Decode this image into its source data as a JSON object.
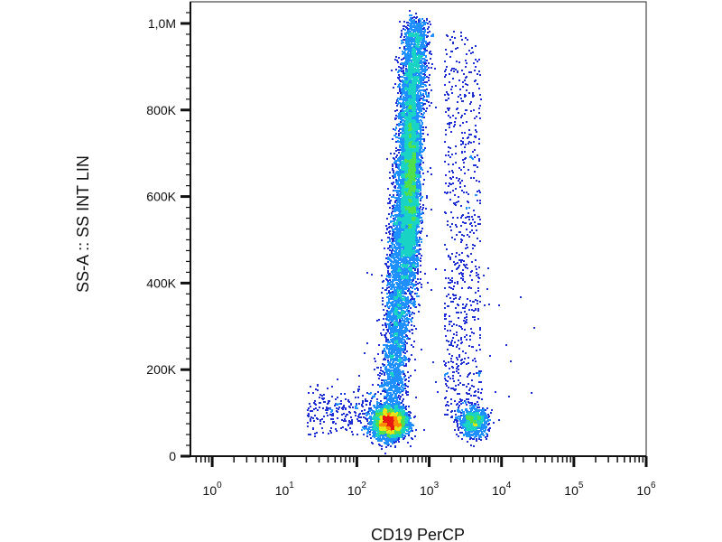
{
  "chart_data": {
    "type": "scatter",
    "title": "",
    "xlabel": "CD19 PerCP",
    "ylabel": "SS-A :: SS INT LIN",
    "x_scale": "log",
    "y_scale": "linear",
    "xlim": [
      0.5,
      1000000
    ],
    "ylim": [
      0,
      1050000
    ],
    "x_ticks": [
      {
        "value": 1,
        "base": "10",
        "exp": "0"
      },
      {
        "value": 10,
        "base": "10",
        "exp": "1"
      },
      {
        "value": 100,
        "base": "10",
        "exp": "2"
      },
      {
        "value": 1000,
        "base": "10",
        "exp": "3"
      },
      {
        "value": 10000,
        "base": "10",
        "exp": "4"
      },
      {
        "value": 100000,
        "base": "10",
        "exp": "5"
      },
      {
        "value": 1000000,
        "base": "10",
        "exp": "6"
      }
    ],
    "y_ticks": [
      {
        "value": 0,
        "label": "0"
      },
      {
        "value": 200000,
        "label": "200K"
      },
      {
        "value": 400000,
        "label": "400K"
      },
      {
        "value": 600000,
        "label": "600K"
      },
      {
        "value": 800000,
        "label": "800K"
      },
      {
        "value": 1000000,
        "label": "1,0M"
      }
    ],
    "density_colormap": [
      "#1f2fd6",
      "#1e90ff",
      "#19d3c5",
      "#4fe04f",
      "#e6e617",
      "#ff8c00",
      "#e8170f"
    ],
    "grid": false,
    "legend": false,
    "populations": [
      {
        "x": 280,
        "y": 80000,
        "x_spread_decades": 0.11,
        "y_spread": 18000
      },
      {
        "x_start": 300,
        "x_end": 650,
        "y_start": 130000,
        "y_end": 1000000,
        "x_spread_decades": 0.09
      },
      {
        "x": 4000,
        "y": 80000,
        "x_spread_decades": 0.1,
        "y_spread": 16000
      }
    ]
  }
}
